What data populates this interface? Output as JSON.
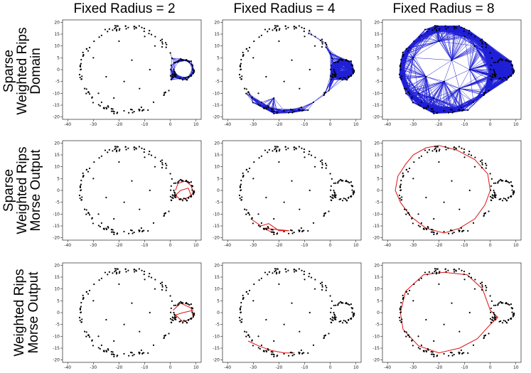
{
  "chart_data": {
    "type": "scatter",
    "layout": "grid of 3 rows by 3 columns of small scatter plots",
    "column_titles": [
      "Fixed Radius = 2",
      "Fixed Radius = 4",
      "Fixed Radius = 8"
    ],
    "row_titles": [
      [
        "Sparse",
        "Weighted Rips",
        "Domain"
      ],
      [
        "Sparse",
        "Weighted Rips",
        "Morse Output"
      ],
      [
        "Weighted Rips",
        "Morse Output"
      ]
    ],
    "xlim": [
      -42,
      12
    ],
    "ylim": [
      -21,
      21
    ],
    "x_ticks": [
      -40,
      -30,
      -20,
      -10,
      0,
      10
    ],
    "y_ticks": [
      -20,
      -15,
      -10,
      -5,
      0,
      5,
      10,
      15,
      20
    ],
    "grid": false,
    "point_color": "#000000",
    "domain_edge_color": "#1f1fd6",
    "output_edge_color": "#e01010",
    "points": {
      "large_circle": {
        "center": [
          -17,
          0
        ],
        "radius": 18,
        "count": 120,
        "noise": 1.2
      },
      "small_circle": {
        "center": [
          5,
          0
        ],
        "radius": 4,
        "count": 45,
        "noise": 0.8
      },
      "interior_scatter": [
        [
          -30,
          5
        ],
        [
          -25,
          -3
        ],
        [
          -20,
          12
        ],
        [
          -15,
          4
        ],
        [
          -12,
          -8
        ],
        [
          -8,
          0
        ],
        [
          -22,
          -12
        ],
        [
          -28,
          -10
        ],
        [
          -6,
          10
        ],
        [
          -35,
          0
        ],
        [
          -18,
          -5
        ],
        [
          -10,
          14
        ]
      ]
    },
    "panels": [
      {
        "row": 0,
        "col": 0,
        "edges": "domain",
        "radius": 2,
        "region": "small circle only"
      },
      {
        "row": 0,
        "col": 1,
        "edges": "domain",
        "radius": 4,
        "region": "small circle, bottom arc, top fragment"
      },
      {
        "row": 0,
        "col": 2,
        "edges": "domain",
        "radius": 8,
        "region": "whole dataset"
      },
      {
        "row": 1,
        "col": 0,
        "edges": "output",
        "path": [
          [
            2,
            0
          ],
          [
            3,
            3
          ],
          [
            6,
            4
          ],
          [
            8,
            2
          ],
          [
            9,
            -1
          ],
          [
            7,
            -3
          ],
          [
            4,
            -4
          ],
          [
            2,
            -2
          ],
          [
            4,
            0
          ],
          [
            7,
            1
          ],
          [
            8,
            -2
          ]
        ]
      },
      {
        "row": 1,
        "col": 1,
        "edges": "output",
        "path": [
          [
            -31,
            -12
          ],
          [
            -27,
            -15
          ],
          [
            -24,
            -14
          ],
          [
            -20,
            -17
          ],
          [
            -16,
            -17
          ],
          [
            -26,
            -16
          ],
          [
            -22,
            -18
          ]
        ]
      },
      {
        "row": 1,
        "col": 2,
        "edges": "output",
        "path": [
          [
            -37,
            0
          ],
          [
            -36,
            6
          ],
          [
            -33,
            11
          ],
          [
            -30,
            15
          ],
          [
            -25,
            18
          ],
          [
            -20,
            19
          ],
          [
            -13,
            17
          ],
          [
            -6,
            13
          ],
          [
            -1,
            7
          ],
          [
            0,
            0
          ],
          [
            -2,
            -6
          ],
          [
            -6,
            -12
          ],
          [
            -12,
            -16
          ],
          [
            -18,
            -18
          ],
          [
            -25,
            -16
          ],
          [
            -31,
            -11
          ],
          [
            -35,
            -5
          ],
          [
            -37,
            0
          ]
        ]
      },
      {
        "row": 2,
        "col": 0,
        "edges": "output",
        "path": [
          [
            1,
            1
          ],
          [
            4,
            4
          ],
          [
            8,
            2
          ],
          [
            9,
            -2
          ],
          [
            5,
            -4
          ],
          [
            2,
            -1
          ],
          [
            5,
            0
          ],
          [
            9,
            1
          ]
        ]
      },
      {
        "row": 2,
        "col": 1,
        "edges": "output",
        "path": [
          [
            -32,
            -12
          ],
          [
            -28,
            -14
          ],
          [
            -23,
            -16
          ],
          [
            -18,
            -17
          ],
          [
            -14,
            -17
          ]
        ]
      },
      {
        "row": 2,
        "col": 2,
        "edges": "output",
        "path": [
          [
            -35,
            0
          ],
          [
            -33,
            9
          ],
          [
            -26,
            16
          ],
          [
            -18,
            17
          ],
          [
            -9,
            16
          ],
          [
            -3,
            10
          ],
          [
            0,
            1
          ],
          [
            3,
            -2
          ],
          [
            0,
            -5
          ],
          [
            -5,
            -11
          ],
          [
            -12,
            -15
          ],
          [
            -20,
            -17
          ],
          [
            -28,
            -14
          ],
          [
            -34,
            -7
          ],
          [
            -35,
            0
          ]
        ]
      }
    ]
  }
}
